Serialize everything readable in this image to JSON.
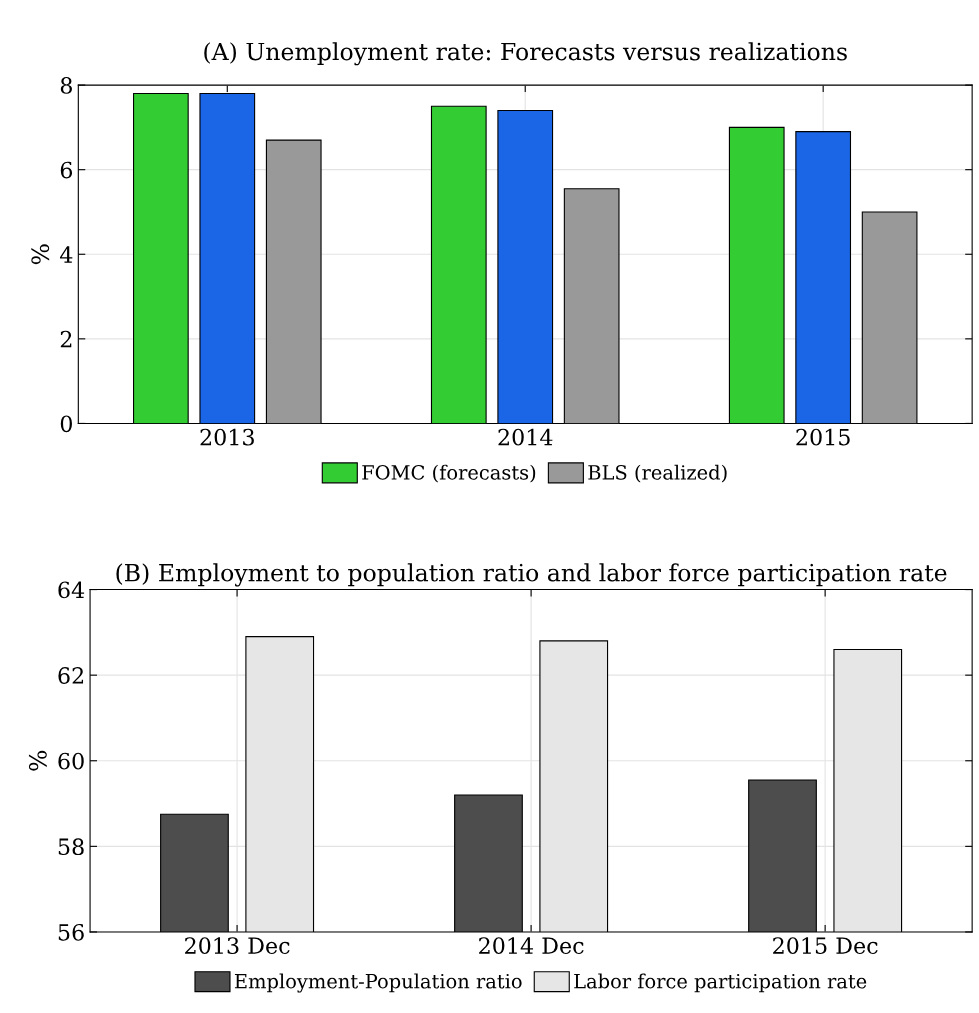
{
  "chart_data": [
    {
      "type": "bar",
      "title": "(A) Unemployment rate: Forecasts versus realizations",
      "ylabel": "%",
      "categories": [
        "2013",
        "2014",
        "2015"
      ],
      "series": [
        {
          "name": "FOMC (forecasts)",
          "color": "#33cc33",
          "values": [
            7.8,
            7.5,
            7.0
          ]
        },
        {
          "color": "#1a66e6",
          "values": [
            7.8,
            7.4,
            6.9
          ]
        },
        {
          "name": "BLS (realized)",
          "color": "#999999",
          "values": [
            6.7,
            5.55,
            5.0
          ]
        }
      ],
      "ylim": [
        0,
        8
      ],
      "yticks": [
        0,
        2,
        4,
        6,
        8
      ],
      "grid": true,
      "legend": "bottom"
    },
    {
      "type": "bar",
      "title": "(B) Employment to population ratio and labor force participation rate",
      "ylabel": "%",
      "categories": [
        "2013 Dec",
        "2014 Dec",
        "2015 Dec"
      ],
      "series": [
        {
          "name": "Employment-Population ratio",
          "color": "#4d4d4d",
          "values": [
            58.75,
            59.2,
            59.55
          ]
        },
        {
          "name": "Labor force participation rate",
          "color": "#e6e6e6",
          "values": [
            62.9,
            62.8,
            62.6
          ]
        }
      ],
      "ylim": [
        56,
        64
      ],
      "yticks": [
        56,
        58,
        60,
        62,
        64
      ],
      "grid": true,
      "legend": "bottom"
    }
  ]
}
